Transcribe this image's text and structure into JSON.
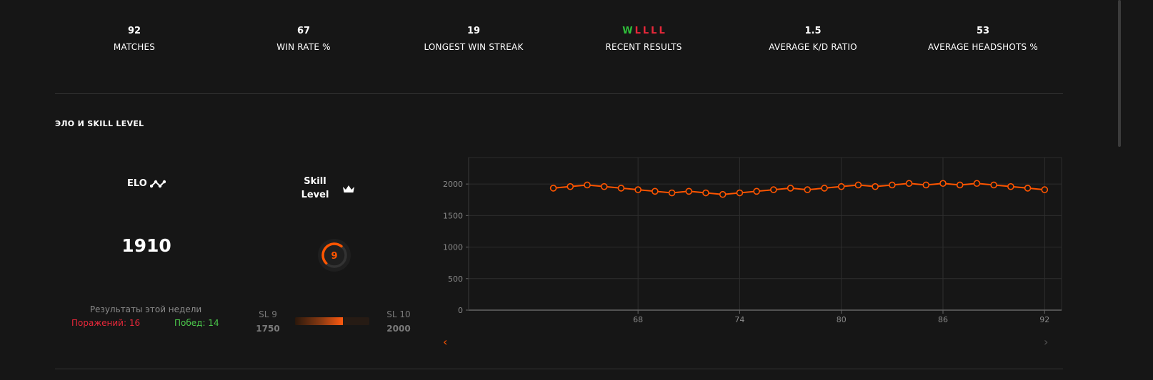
{
  "stats": [
    {
      "value": "92",
      "label": "MATCHES"
    },
    {
      "value": "67",
      "label": "WIN RATE %"
    },
    {
      "value": "19",
      "label": "LONGEST WIN STREAK"
    },
    {
      "value": "",
      "label": "RECENT RESULTS"
    },
    {
      "value": "1.5",
      "label": "AVERAGE K/D RATIO"
    },
    {
      "value": "53",
      "label": "AVERAGE HEADSHOTS %"
    }
  ],
  "recent_results": [
    "W",
    "L",
    "L",
    "L",
    "L"
  ],
  "colors": {
    "accent": "#ff5500",
    "win": "#2fbf3a",
    "loss": "#e8283a",
    "background": "#161616"
  },
  "section": {
    "title": "ЭЛО И SKILL LEVEL"
  },
  "elo": {
    "label": "ELO",
    "icon": "elo-trend-icon",
    "value": "1910"
  },
  "skill": {
    "label_line1": "Skill",
    "label_line2": "Level",
    "icon": "crown-icon",
    "level": "9",
    "progress": 0.64
  },
  "weekly": {
    "title": "Результаты этой недели",
    "losses": "Поражений: 16",
    "wins": "Побед: 14"
  },
  "sl_range": {
    "from_label": "SL 9",
    "from_value": "1750",
    "to_label": "SL 10",
    "to_value": "2000",
    "progress": 0.64
  },
  "nav": {
    "prev": "‹",
    "next": "›"
  },
  "chart_data": {
    "type": "line",
    "title": "",
    "xlabel": "",
    "ylabel": "",
    "x": [
      63,
      64,
      65,
      66,
      67,
      68,
      69,
      70,
      71,
      72,
      73,
      74,
      75,
      76,
      77,
      78,
      79,
      80,
      81,
      82,
      83,
      84,
      85,
      86,
      87,
      88,
      89,
      90,
      91,
      92
    ],
    "series": [
      {
        "values": [
          1935,
          1960,
          1985,
          1960,
          1935,
          1910,
          1885,
          1860,
          1885,
          1860,
          1835,
          1860,
          1885,
          1910,
          1935,
          1910,
          1935,
          1960,
          1985,
          1960,
          1985,
          2010,
          1985,
          2010,
          1985,
          2010,
          1985,
          1960,
          1935,
          1910
        ]
      }
    ],
    "xlim": [
      58,
      93
    ],
    "ylim": [
      0,
      2420
    ],
    "xticks": [
      "68",
      "74",
      "80",
      "86",
      "92"
    ],
    "yticks": [
      "0",
      "500",
      "1000",
      "1500",
      "2000"
    ],
    "line_color": "#ff5500",
    "grid": true
  }
}
